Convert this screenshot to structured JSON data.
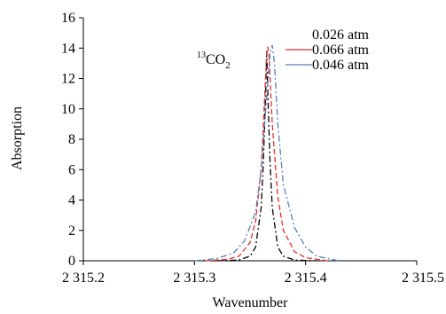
{
  "chart_data": {
    "type": "line",
    "xlabel": "Wavenumber",
    "ylabel": "Absorption",
    "xlim": [
      2315.2,
      2315.5
    ],
    "ylim": [
      0,
      16
    ],
    "x_ticks": [
      2315.2,
      2315.3,
      2315.4,
      2315.5
    ],
    "x_tick_labels": [
      "2 315.2",
      "2 315.3",
      "2 315.4",
      "2 315.5"
    ],
    "y_ticks": [
      0,
      2,
      4,
      6,
      8,
      10,
      12,
      14,
      16
    ],
    "y_tick_labels": [
      "0",
      "2",
      "4",
      "6",
      "8",
      "10",
      "12",
      "14",
      "16"
    ],
    "grid": false,
    "legend_position": "top-right",
    "annotation": {
      "prefix": "13",
      "main": "CO",
      "sub": "2"
    },
    "series": [
      {
        "name": "0.026 atm",
        "color": "#000000",
        "dash": "dashdot",
        "x": [
          2315.32,
          2315.34,
          2315.35,
          2315.355,
          2315.36,
          2315.362,
          2315.364,
          2315.365,
          2315.366,
          2315.368,
          2315.37,
          2315.375,
          2315.38,
          2315.39,
          2315.41
        ],
        "y": [
          0.0,
          0.05,
          0.3,
          0.9,
          3.5,
          6.5,
          11.0,
          13.8,
          11.0,
          6.5,
          3.5,
          0.9,
          0.3,
          0.05,
          0.0
        ]
      },
      {
        "name": "0.066 atm",
        "color": "#e03030",
        "dash": "dashed",
        "x": [
          2315.31,
          2315.33,
          2315.34,
          2315.35,
          2315.355,
          2315.36,
          2315.363,
          2315.365,
          2315.366,
          2315.367,
          2315.37,
          2315.375,
          2315.38,
          2315.39,
          2315.4,
          2315.42
        ],
        "y": [
          0.0,
          0.1,
          0.3,
          1.2,
          2.6,
          6.0,
          10.5,
          13.6,
          14.1,
          13.6,
          9.0,
          4.2,
          2.0,
          0.6,
          0.2,
          0.0
        ]
      },
      {
        "name": "0.046 atm",
        "color": "#5a7fb8",
        "dash": "dashdot",
        "x": [
          2315.3,
          2315.32,
          2315.335,
          2315.345,
          2315.355,
          2315.36,
          2315.365,
          2315.368,
          2315.37,
          2315.372,
          2315.375,
          2315.38,
          2315.39,
          2315.4,
          2315.41,
          2315.43
        ],
        "y": [
          0.0,
          0.15,
          0.5,
          1.3,
          3.2,
          6.0,
          10.8,
          13.6,
          14.2,
          13.0,
          9.0,
          5.0,
          2.2,
          0.9,
          0.3,
          0.0
        ]
      }
    ]
  }
}
